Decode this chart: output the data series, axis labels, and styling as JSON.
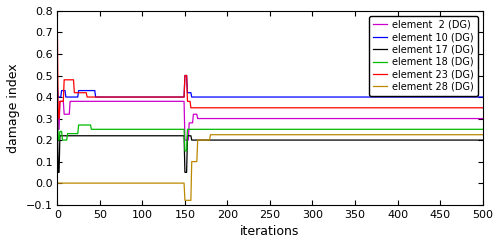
{
  "title": "",
  "xlabel": "iterations",
  "ylabel": "damage index",
  "xlim": [
    0,
    500
  ],
  "ylim": [
    -0.1,
    0.8
  ],
  "xticks": [
    0,
    50,
    100,
    150,
    200,
    250,
    300,
    350,
    400,
    450,
    500
  ],
  "yticks": [
    -0.1,
    0.0,
    0.1,
    0.2,
    0.3,
    0.4,
    0.5,
    0.6,
    0.7,
    0.8
  ],
  "legend_labels": [
    "element  2 (DG)",
    "element 10 (DG)",
    "element 17 (DG)",
    "element 18 (DG)",
    "element 23 (DG)",
    "element 28 (DG)"
  ],
  "line_colors": [
    "#CC00CC",
    "#0000FF",
    "#000000",
    "#00BB00",
    "#FF0000",
    "#BB8800"
  ],
  "final_values": [
    0.3,
    0.4,
    0.2,
    0.25,
    0.35,
    0.225
  ],
  "figsize": [
    5.0,
    2.45
  ],
  "dpi": 100
}
